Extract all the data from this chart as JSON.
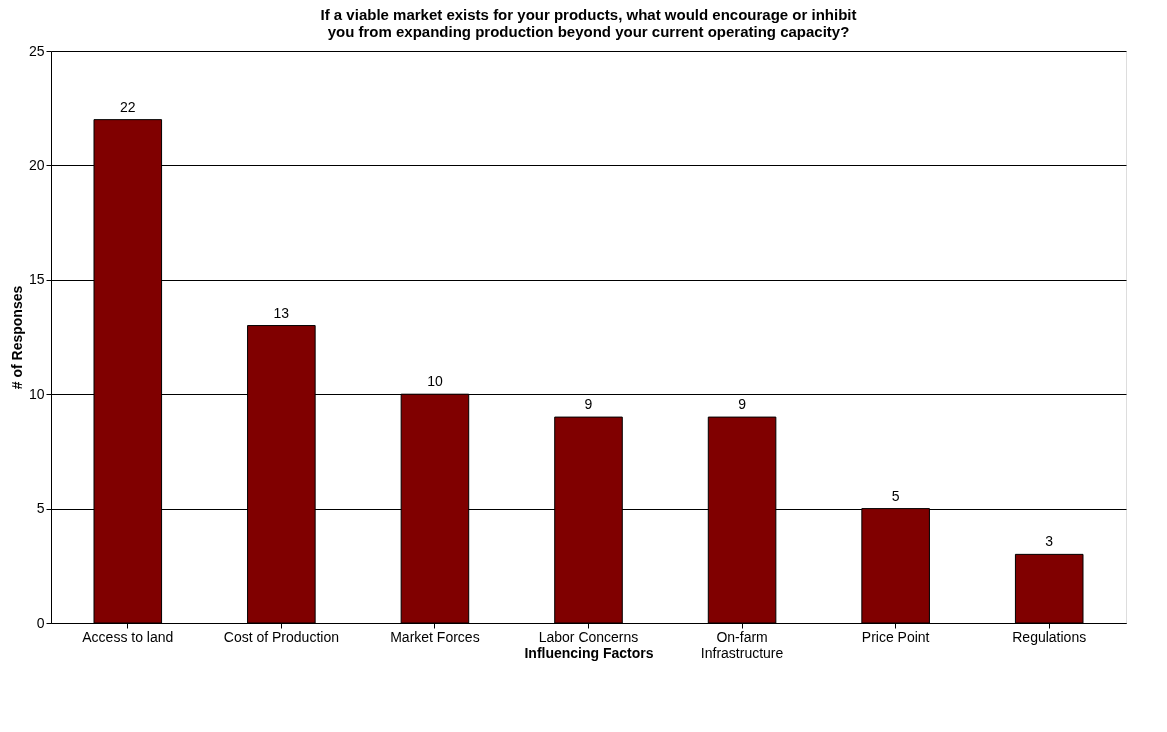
{
  "chart_data": {
    "type": "bar",
    "title": "If a viable market exists for your products, what would encourage or inhibit you from expanding production beyond your current operating capacity?",
    "xlabel": "Influencing Factors",
    "ylabel": "# of Responses",
    "categories": [
      "Access to land",
      "Cost of Production",
      "Market Forces",
      "Labor Concerns",
      "On-farm Infrastructure",
      "Price Point",
      "Regulations"
    ],
    "values": [
      22,
      13,
      10,
      9,
      9,
      5,
      3
    ],
    "color": "#800000",
    "ylim": [
      0,
      25
    ],
    "yticks": [
      0,
      5,
      10,
      15,
      20,
      25
    ],
    "grid": "y",
    "data_labels": true
  }
}
